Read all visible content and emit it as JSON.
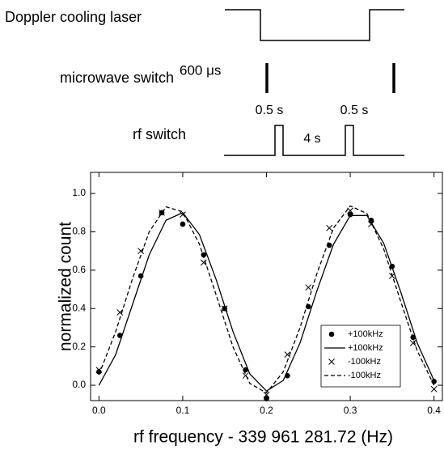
{
  "diagram": {
    "doppler_label": "Doppler cooling laser",
    "microwave_label": "microwave switch",
    "microwave_duration": "600 μs",
    "rf_label": "rf switch",
    "rf_pulse_1": "0.5 s",
    "rf_pulse_2": "0.5 s",
    "rf_gap": "4 s"
  },
  "chart_data": {
    "type": "scatter",
    "xlabel": "rf frequency - 339 961 281.72 (Hz)",
    "ylabel": "normalized count",
    "xlim": [
      -0.01,
      0.41
    ],
    "ylim": [
      -0.08,
      1.11
    ],
    "xticks": [
      {
        "value": 0,
        "label": "0.0"
      },
      {
        "value": 0.1,
        "label": "0.1"
      },
      {
        "value": 0.2,
        "label": "0.2"
      },
      {
        "value": 0.3,
        "label": "0.3"
      },
      {
        "value": 0.4,
        "label": "0.4"
      }
    ],
    "yticks": [
      {
        "value": 0,
        "label": "0.0"
      },
      {
        "value": 0.2,
        "label": "0.2"
      },
      {
        "value": 0.4,
        "label": "0.4"
      },
      {
        "value": 0.6,
        "label": "0.6"
      },
      {
        "value": 0.8,
        "label": "0.8"
      },
      {
        "value": 1,
        "label": "1.0"
      }
    ],
    "legend": "lower right",
    "series": [
      {
        "name": "+100kHz",
        "color": "#000000",
        "marker": "circle",
        "line": "none",
        "x": [
          0,
          0.025,
          0.05,
          0.075,
          0.1,
          0.125,
          0.15,
          0.175,
          0.2,
          0.225,
          0.25,
          0.275,
          0.3,
          0.325,
          0.35,
          0.375,
          0.4
        ],
        "values": [
          0.07,
          0.26,
          0.57,
          0.9,
          0.84,
          0.68,
          0.4,
          0.08,
          -0.07,
          0.05,
          0.41,
          0.73,
          0.89,
          0.86,
          0.62,
          0.25,
          0.02
        ]
      },
      {
        "name": "+100kHz",
        "color": "#000000",
        "marker": "none",
        "line": "solid",
        "x": [
          0,
          0.02,
          0.04,
          0.06,
          0.08,
          0.1,
          0.12,
          0.14,
          0.16,
          0.18,
          0.2,
          0.22,
          0.24,
          0.26,
          0.28,
          0.3,
          0.32,
          0.34,
          0.36,
          0.38,
          0.4
        ],
        "values": [
          0,
          0.16,
          0.42,
          0.68,
          0.86,
          0.9,
          0.785,
          0.55,
          0.28,
          0.06,
          -0.03,
          0.025,
          0.22,
          0.49,
          0.735,
          0.885,
          0.885,
          0.74,
          0.49,
          0.22,
          0.025
        ]
      },
      {
        "name": "-100kHz",
        "color": "#000000",
        "marker": "cross",
        "line": "none",
        "x": [
          0,
          0.025,
          0.05,
          0.075,
          0.1,
          0.125,
          0.15,
          0.175,
          0.2,
          0.225,
          0.25,
          0.275,
          0.3,
          0.325,
          0.35,
          0.375,
          0.4
        ],
        "values": [
          0.08,
          0.38,
          0.7,
          0.9,
          0.89,
          0.64,
          0.4,
          0.05,
          -0.05,
          0.16,
          0.51,
          0.82,
          0.91,
          0.84,
          0.57,
          0.22,
          -0.02
        ]
      },
      {
        "name": "-100kHz",
        "color": "#000000",
        "marker": "none",
        "line": "dashed",
        "x": [
          0,
          0.02,
          0.04,
          0.06,
          0.08,
          0.1,
          0.12,
          0.14,
          0.16,
          0.18,
          0.2,
          0.22,
          0.24,
          0.26,
          0.28,
          0.3,
          0.32,
          0.34,
          0.36,
          0.38,
          0.4
        ],
        "values": [
          0.055,
          0.28,
          0.555,
          0.8,
          0.93,
          0.905,
          0.735,
          0.47,
          0.2,
          0.01,
          -0.04,
          0.07,
          0.3,
          0.58,
          0.82,
          0.935,
          0.895,
          0.71,
          0.44,
          0.18,
          0
        ]
      }
    ]
  }
}
